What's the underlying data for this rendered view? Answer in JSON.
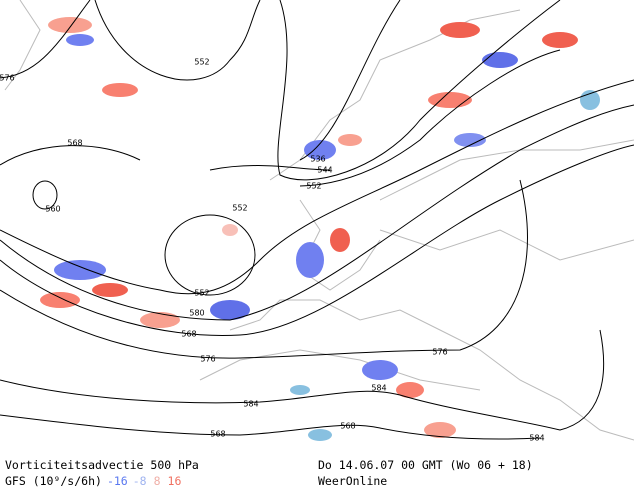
{
  "map": {
    "contour_labels": [
      "576",
      "552",
      "568",
      "560",
      "552",
      "536",
      "544",
      "552",
      "552",
      "580",
      "568",
      "576",
      "576",
      "584",
      "584",
      "568",
      "568",
      "584"
    ],
    "footer": {
      "title": "Vorticiteitsadvectie 500 hPa",
      "source": "GFS (10⁹/s/6h)",
      "legend": [
        "-16",
        "-8",
        "8",
        "16"
      ],
      "date": "Do 14.06.07 00 GMT (Wo 06 + 18)",
      "brand": "WeerOnline"
    }
  }
}
